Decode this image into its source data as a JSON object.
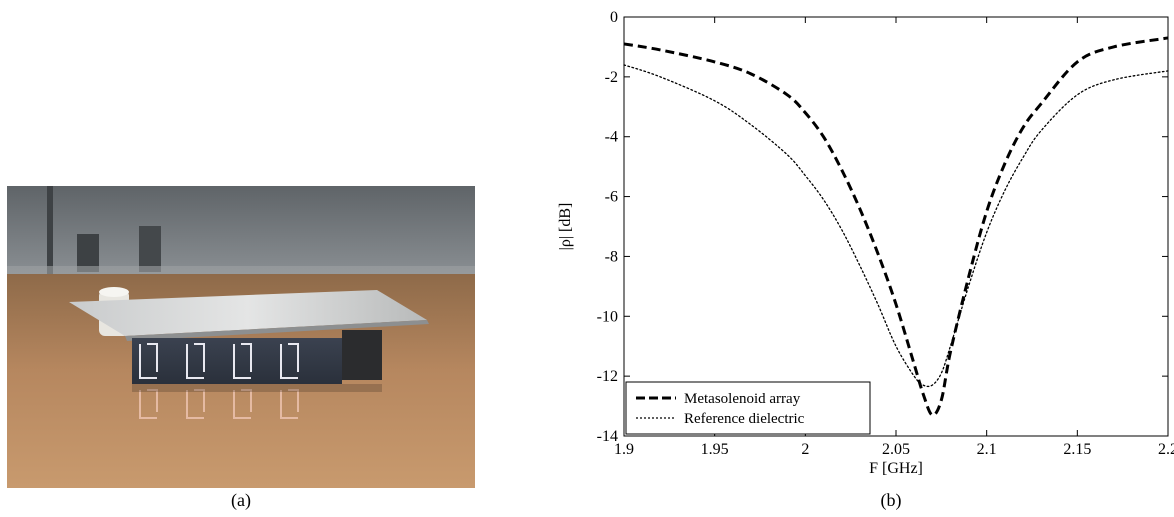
{
  "panels": {
    "a": {
      "caption": "(a)"
    },
    "b": {
      "caption": "(b)"
    }
  },
  "chart_data": {
    "type": "line",
    "title": "",
    "xlabel": "F [GHz]",
    "ylabel": "|ρ| [dB]",
    "xlim": [
      1.9,
      2.2
    ],
    "ylim": [
      -14,
      0
    ],
    "xticks": [
      1.9,
      1.95,
      2,
      2.05,
      2.1,
      2.15,
      2.2
    ],
    "xtick_labels": [
      "1.9",
      "1.95",
      "2",
      "2.05",
      "2.1",
      "2.15",
      "2.2"
    ],
    "yticks": [
      0,
      -2,
      -4,
      -6,
      -8,
      -10,
      -12,
      -14
    ],
    "ytick_labels": [
      "0",
      "-2",
      "-4",
      "-6",
      "-8",
      "-10",
      "-12",
      "-14"
    ],
    "grid": false,
    "legend_position": "bottom-left",
    "series": [
      {
        "name": "Metasolenoid array",
        "style": "dashed",
        "color": "#000000",
        "x": [
          1.9,
          1.92,
          1.95,
          1.97,
          1.99,
          2.0,
          2.01,
          2.02,
          2.03,
          2.04,
          2.05,
          2.06,
          2.065,
          2.07,
          2.075,
          2.08,
          2.09,
          2.1,
          2.11,
          2.12,
          2.13,
          2.15,
          2.17,
          2.2
        ],
        "y": [
          -0.9,
          -1.1,
          -1.5,
          -1.9,
          -2.6,
          -3.2,
          -4.0,
          -5.1,
          -6.4,
          -7.9,
          -9.6,
          -11.6,
          -12.6,
          -13.3,
          -12.8,
          -11.2,
          -8.7,
          -6.5,
          -4.9,
          -3.7,
          -2.9,
          -1.5,
          -1.0,
          -0.7
        ]
      },
      {
        "name": "Reference dielectric",
        "style": "dotted",
        "color": "#000000",
        "x": [
          1.9,
          1.92,
          1.95,
          1.97,
          1.99,
          2.0,
          2.01,
          2.02,
          2.03,
          2.04,
          2.05,
          2.06,
          2.065,
          2.07,
          2.075,
          2.08,
          2.09,
          2.1,
          2.11,
          2.12,
          2.13,
          2.15,
          2.17,
          2.2
        ],
        "y": [
          -1.6,
          -2.0,
          -2.8,
          -3.6,
          -4.6,
          -5.3,
          -6.1,
          -7.1,
          -8.3,
          -9.6,
          -11.0,
          -12.0,
          -12.3,
          -12.3,
          -11.9,
          -11.0,
          -9.0,
          -7.2,
          -5.8,
          -4.7,
          -3.8,
          -2.6,
          -2.1,
          -1.8
        ]
      }
    ]
  }
}
